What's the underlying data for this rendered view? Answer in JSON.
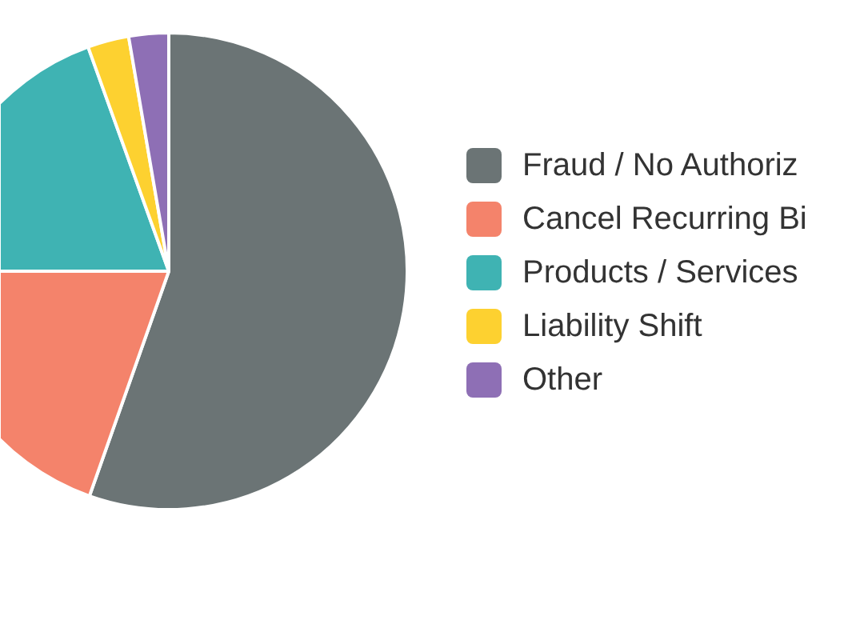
{
  "chart_data": {
    "type": "pie",
    "categories": [
      "Fraud / No Authoriz",
      "Cancel Recurring Bi",
      "Products / Services",
      "Liability Shift",
      "Other"
    ],
    "values": [
      55.4,
      19.6,
      19.5,
      2.8,
      2.7
    ],
    "colors": [
      "#6b7475",
      "#f4836b",
      "#3fb3b3",
      "#fdd130",
      "#8e6fb5"
    ],
    "legend": "right"
  }
}
